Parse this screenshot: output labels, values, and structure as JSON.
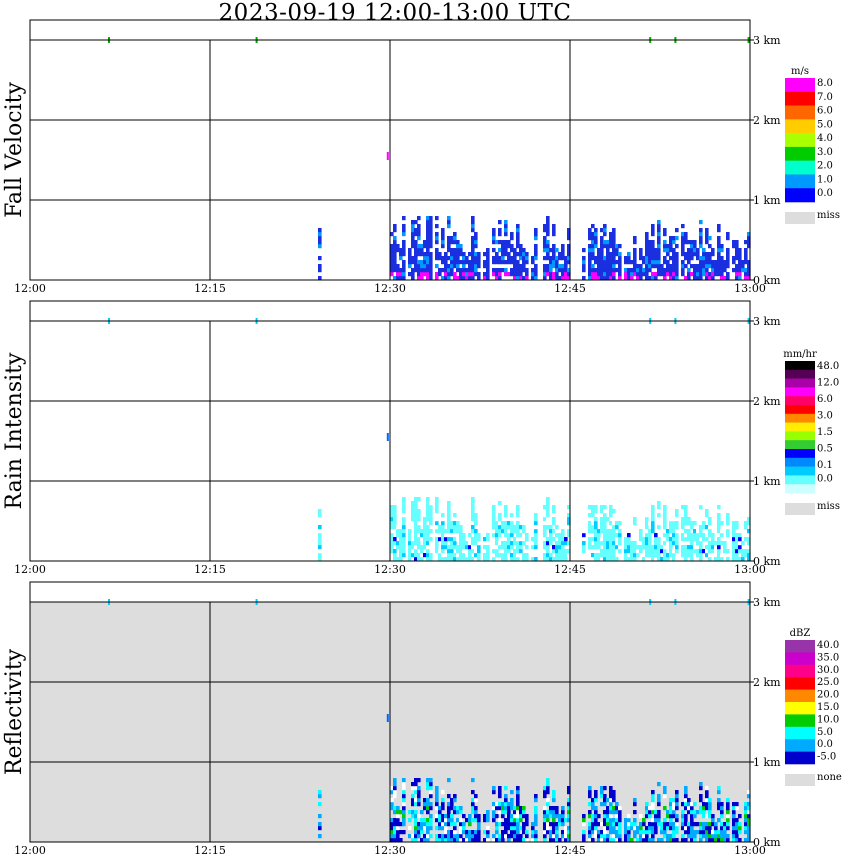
{
  "title": "2023-09-19  12:00-13:00 UTC",
  "chart_data": [
    {
      "type": "heatmap",
      "ylabel": "Fall Velocity",
      "x_ticks": [
        "12:00",
        "12:15",
        "12:30",
        "12:45",
        "13:00"
      ],
      "x_range_minutes": [
        0,
        60
      ],
      "y_ticks": [
        "0 km",
        "1 km",
        "2 km",
        "3 km"
      ],
      "y_range_km": [
        0,
        3.0
      ],
      "background": "#ffffff",
      "grid": true,
      "legend": {
        "unit": "m/s",
        "labels": [
          "8.0",
          "7.0",
          "6.0",
          "5.0",
          "4.0",
          "3.0",
          "2.0",
          "1.0",
          "0.0"
        ],
        "colors": [
          "#ff00ff",
          "#ff0000",
          "#ff6600",
          "#ffcc00",
          "#aaff00",
          "#00cc00",
          "#00ffcc",
          "#0099ff",
          "#0000ff"
        ],
        "miss_label": "miss",
        "miss_color": "#dddddd"
      },
      "dominant_color": "#1a2fe0",
      "accent_colors": [
        "#0099ff",
        "#ff00ff"
      ]
    },
    {
      "type": "heatmap",
      "ylabel": "Rain Intensity",
      "x_ticks": [
        "12:00",
        "12:15",
        "12:30",
        "12:45",
        "13:00"
      ],
      "x_range_minutes": [
        0,
        60
      ],
      "y_ticks": [
        "0 km",
        "1 km",
        "2 km",
        "3 km"
      ],
      "y_range_km": [
        0,
        3.0
      ],
      "background": "#ffffff",
      "grid": true,
      "legend": {
        "unit": "mm/hr",
        "labels": [
          "48.0",
          "12.0",
          "6.0",
          "3.0",
          "1.5",
          "0.5",
          "0.1",
          "0.0"
        ],
        "colors": [
          "#000000",
          "#550055",
          "#aa00aa",
          "#ff00ff",
          "#ff0066",
          "#ff0000",
          "#ff8800",
          "#ffee00",
          "#99ff00",
          "#33cc33",
          "#0000ff",
          "#0088ff",
          "#00ccff",
          "#66ffff",
          "#ccffff"
        ],
        "miss_label": "miss",
        "miss_color": "#dddddd"
      },
      "dominant_color": "#66ffff",
      "accent_colors": [
        "#00ccff",
        "#0000ff"
      ]
    },
    {
      "type": "heatmap",
      "ylabel": "Reflectivity",
      "x_ticks": [
        "12:00",
        "12:15",
        "12:30",
        "12:45",
        "13:00"
      ],
      "x_range_minutes": [
        0,
        60
      ],
      "y_ticks": [
        "0 km",
        "1 km",
        "2 km",
        "3 km"
      ],
      "y_range_km": [
        0,
        3.0
      ],
      "background": "#dddddd",
      "grid": true,
      "legend": {
        "unit": "dBZ",
        "labels": [
          "40.0",
          "35.0",
          "30.0",
          "25.0",
          "20.0",
          "15.0",
          "10.0",
          "5.0",
          "0.0",
          "-5.0"
        ],
        "colors": [
          "#9933aa",
          "#cc00cc",
          "#ff0088",
          "#ff0000",
          "#ff8800",
          "#ffff00",
          "#00cc00",
          "#00ffff",
          "#00aaff",
          "#0000cc"
        ],
        "miss_label": "none",
        "miss_color": "#dddddd"
      },
      "dominant_color": "#0000cc",
      "accent_colors": [
        "#00aaff",
        "#00ffff",
        "#00cc00"
      ]
    }
  ]
}
